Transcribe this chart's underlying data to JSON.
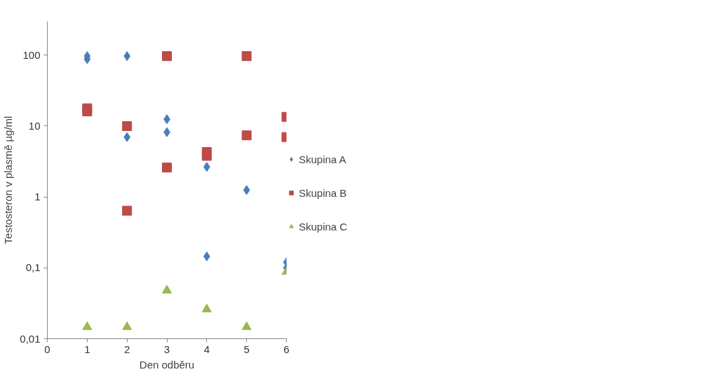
{
  "chart_data": {
    "type": "scatter",
    "xlabel": "Den odběru",
    "ylabel": "Testosteron v plasmě µg/ml",
    "log": "y",
    "grid": false,
    "legend": "right",
    "xlim": [
      0,
      6
    ],
    "xticks": [
      0,
      1,
      2,
      3,
      4,
      5,
      6
    ],
    "ylim": [
      0.01,
      300
    ],
    "yticks": [
      {
        "value": 0.01,
        "label": "0,01"
      },
      {
        "value": 0.1,
        "label": "0,1"
      },
      1,
      10,
      100
    ],
    "series": [
      {
        "name": "Skupina A",
        "color": "#4a7ebb",
        "marker": "diamond",
        "x": [
          1,
          1,
          2,
          2,
          3,
          3,
          4,
          4,
          5,
          6,
          6
        ],
        "values": [
          97,
          88,
          97,
          7,
          12.5,
          8.2,
          2.65,
          0.145,
          1.25,
          0.12,
          0.1
        ]
      },
      {
        "name": "Skupina B",
        "color": "#be4b48",
        "marker": "square",
        "x": [
          1,
          1,
          2,
          2,
          3,
          3,
          4,
          4,
          5,
          5,
          6,
          6
        ],
        "values": [
          17.8,
          16.1,
          10,
          0.64,
          97,
          2.6,
          4.3,
          3.8,
          97,
          7.4,
          13.5,
          7
        ]
      },
      {
        "name": "Skupina C",
        "color": "#98b954",
        "marker": "triangle",
        "x": [
          1,
          2,
          3,
          4,
          5,
          6
        ],
        "values": [
          0.0146,
          0.0146,
          0.048,
          0.026,
          0.0146,
          0.088
        ]
      }
    ]
  }
}
